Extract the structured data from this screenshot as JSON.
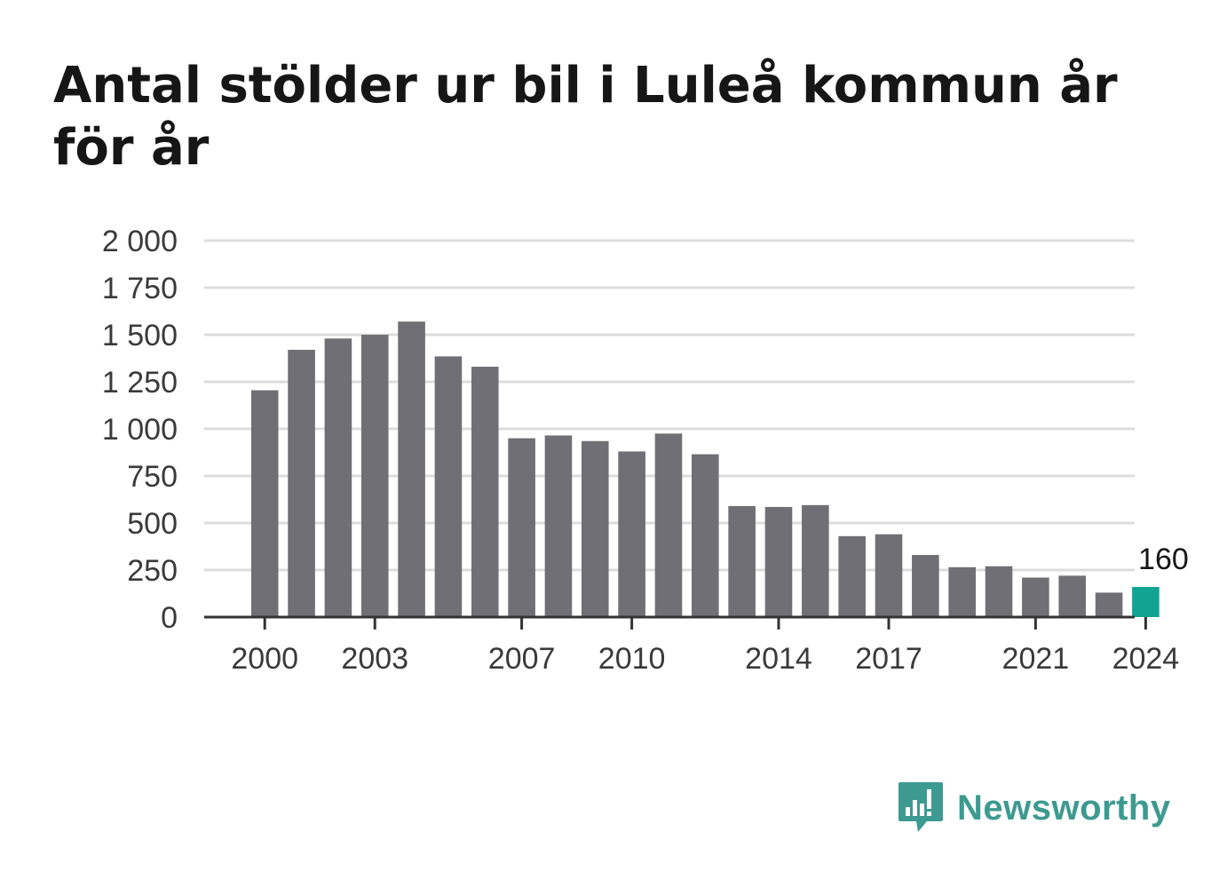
{
  "title": "Antal stölder ur bil i Luleå kommun år för år",
  "brand": {
    "name": "Newsworthy",
    "icon": "newsworthy-logo-icon",
    "color": "#3d9a91"
  },
  "chart_data": {
    "type": "bar",
    "title": "Antal stölder ur bil i Luleå kommun år för år",
    "xlabel": "",
    "ylabel": "",
    "categories": [
      "2000",
      "2001",
      "2002",
      "2003",
      "2004",
      "2005",
      "2006",
      "2007",
      "2008",
      "2009",
      "2010",
      "2011",
      "2012",
      "2013",
      "2014",
      "2015",
      "2016",
      "2017",
      "2018",
      "2019",
      "2020",
      "2021",
      "2022",
      "2023",
      "2024"
    ],
    "values": [
      1205,
      1420,
      1480,
      1500,
      1570,
      1385,
      1330,
      950,
      965,
      935,
      880,
      975,
      865,
      590,
      585,
      595,
      430,
      440,
      330,
      265,
      270,
      210,
      220,
      130,
      160
    ],
    "ylim": [
      0,
      2000
    ],
    "yticks": [
      0,
      250,
      500,
      750,
      1000,
      1250,
      1500,
      1750,
      2000
    ],
    "ytick_labels": [
      "0",
      "250",
      "500",
      "750",
      "1 000",
      "1 250",
      "1 500",
      "1 750",
      "2 000"
    ],
    "xtick_labels": [
      "2000",
      "2003",
      "2007",
      "2010",
      "2014",
      "2017",
      "2021",
      "2024"
    ],
    "grid": true,
    "colors": {
      "bar": "#706f75",
      "highlight": "#12a392",
      "grid": "#dcdcdc",
      "axis": "#333333"
    },
    "highlight": {
      "category": "2024",
      "label": "160"
    }
  }
}
